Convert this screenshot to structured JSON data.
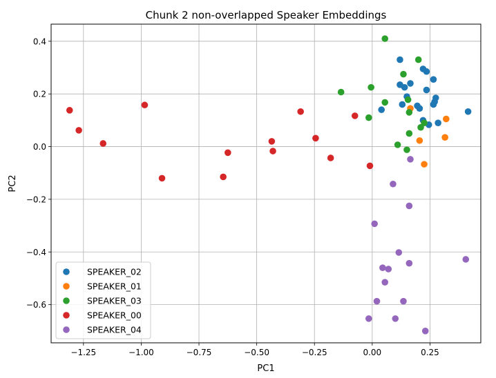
{
  "chart_data": {
    "type": "scatter",
    "title": "Chunk 2 non-overlapped Speaker Embeddings",
    "xlabel": "PC1",
    "ylabel": "PC2",
    "xlim": [
      -1.39,
      0.47
    ],
    "ylim": [
      -0.745,
      0.465
    ],
    "grid": true,
    "legend_position": "lower-left",
    "x_ticks": [
      -1.25,
      -1.0,
      -0.75,
      -0.5,
      -0.25,
      0.0,
      0.25
    ],
    "x_tick_labels": [
      "−1.25",
      "−1.00",
      "−0.75",
      "−0.50",
      "−0.25",
      "0.00",
      "0.25"
    ],
    "y_ticks": [
      0.4,
      0.2,
      0.0,
      -0.2,
      -0.4,
      -0.6
    ],
    "y_tick_labels": [
      "0.4",
      "0.2",
      "0.0",
      "−0.2",
      "−0.4",
      "−0.6"
    ],
    "series": [
      {
        "name": "SPEAKER_02",
        "color": "#1f77b4",
        "points": [
          [
            0.12,
            0.33
          ],
          [
            0.22,
            0.295
          ],
          [
            0.235,
            0.285
          ],
          [
            0.265,
            0.255
          ],
          [
            0.12,
            0.235
          ],
          [
            0.165,
            0.24
          ],
          [
            0.14,
            0.225
          ],
          [
            0.235,
            0.215
          ],
          [
            0.15,
            0.19
          ],
          [
            0.275,
            0.185
          ],
          [
            0.27,
            0.17
          ],
          [
            0.265,
            0.16
          ],
          [
            0.13,
            0.16
          ],
          [
            0.195,
            0.155
          ],
          [
            0.205,
            0.145
          ],
          [
            0.04,
            0.14
          ],
          [
            0.415,
            0.133
          ],
          [
            0.22,
            0.1
          ],
          [
            0.285,
            0.09
          ],
          [
            0.245,
            0.083
          ]
        ]
      },
      {
        "name": "SPEAKER_01",
        "color": "#ff7f0e",
        "points": [
          [
            0.165,
            0.145
          ],
          [
            0.32,
            0.105
          ],
          [
            0.315,
            0.035
          ],
          [
            0.205,
            0.023
          ],
          [
            0.225,
            -0.067
          ]
        ]
      },
      {
        "name": "SPEAKER_03",
        "color": "#2ca02c",
        "points": [
          [
            0.055,
            0.41
          ],
          [
            0.2,
            0.33
          ],
          [
            0.135,
            0.275
          ],
          [
            -0.005,
            0.225
          ],
          [
            -0.135,
            0.207
          ],
          [
            0.155,
            0.178
          ],
          [
            0.055,
            0.168
          ],
          [
            0.16,
            0.13
          ],
          [
            -0.015,
            0.11
          ],
          [
            0.225,
            0.09
          ],
          [
            0.21,
            0.073
          ],
          [
            0.16,
            0.05
          ],
          [
            0.11,
            0.007
          ],
          [
            0.15,
            -0.012
          ]
        ]
      },
      {
        "name": "SPEAKER_00",
        "color": "#d62728",
        "points": [
          [
            -1.31,
            0.138
          ],
          [
            -1.27,
            0.062
          ],
          [
            -1.165,
            0.012
          ],
          [
            -0.985,
            0.158
          ],
          [
            -0.91,
            -0.12
          ],
          [
            -0.645,
            -0.115
          ],
          [
            -0.625,
            -0.023
          ],
          [
            -0.435,
            0.02
          ],
          [
            -0.43,
            -0.017
          ],
          [
            -0.31,
            0.133
          ],
          [
            -0.245,
            0.032
          ],
          [
            -0.18,
            -0.043
          ],
          [
            -0.075,
            0.117
          ],
          [
            -0.01,
            -0.073
          ]
        ]
      },
      {
        "name": "SPEAKER_04",
        "color": "#9467bd",
        "points": [
          [
            0.165,
            -0.048
          ],
          [
            0.09,
            -0.142
          ],
          [
            0.16,
            -0.225
          ],
          [
            0.01,
            -0.293
          ],
          [
            0.115,
            -0.402
          ],
          [
            0.405,
            -0.428
          ],
          [
            0.16,
            -0.443
          ],
          [
            0.045,
            -0.46
          ],
          [
            0.07,
            -0.465
          ],
          [
            0.055,
            -0.515
          ],
          [
            0.02,
            -0.587
          ],
          [
            0.135,
            -0.587
          ],
          [
            -0.015,
            -0.653
          ],
          [
            0.1,
            -0.653
          ],
          [
            0.23,
            -0.7
          ]
        ]
      }
    ]
  }
}
